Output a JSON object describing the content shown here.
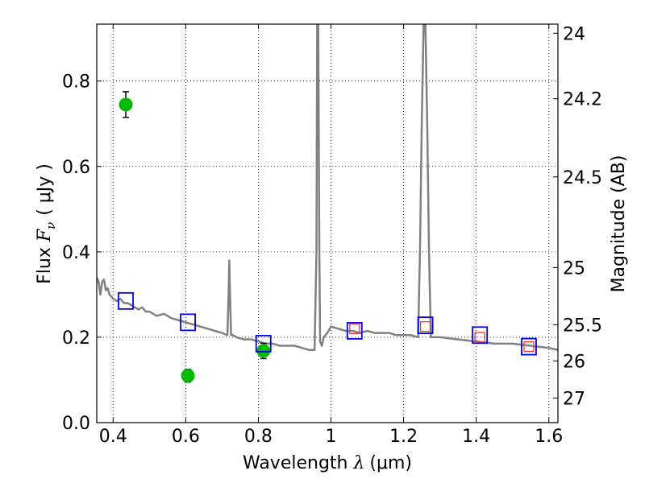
{
  "chart_data": {
    "type": "scatter",
    "xlabel": "Wavelength  λ (μm)",
    "xlabel_parts": {
      "prefix": "Wavelength  ",
      "symbol": "λ",
      "unit": "(μm)"
    },
    "ylabel": "Flux  Fν ( μJy )",
    "ylabel_parts": {
      "prefix": "Flux  ",
      "symbol": "F",
      "sub": "ν",
      "unit": "( μJy )"
    },
    "y2label": "Magnitude (AB)",
    "xlim": [
      0.355,
      1.625
    ],
    "ylim": [
      0.0,
      0.9333
    ],
    "grid": true,
    "x_ticks": [
      {
        "value": 0.4,
        "label": "0.4"
      },
      {
        "value": 0.6,
        "label": "0.6"
      },
      {
        "value": 0.8,
        "label": "0.8"
      },
      {
        "value": 1.0,
        "label": "1"
      },
      {
        "value": 1.2,
        "label": "1.2"
      },
      {
        "value": 1.4,
        "label": "1.4"
      },
      {
        "value": 1.6,
        "label": "1.6"
      }
    ],
    "y_ticks": [
      {
        "value": 0.0,
        "label": "0.0"
      },
      {
        "value": 0.2,
        "label": "0.2"
      },
      {
        "value": 0.4,
        "label": "0.4"
      },
      {
        "value": 0.6,
        "label": "0.6"
      },
      {
        "value": 0.8,
        "label": "0.8"
      }
    ],
    "y2_ticks": [
      {
        "mag": 24,
        "label": "24"
      },
      {
        "mag": 24.2,
        "label": "24.2"
      },
      {
        "mag": 24.5,
        "label": "24.5"
      },
      {
        "mag": 25,
        "label": "25"
      },
      {
        "mag": 25.5,
        "label": "25.5"
      },
      {
        "mag": 26,
        "label": "26"
      },
      {
        "mag": 27,
        "label": "27"
      }
    ],
    "series": [
      {
        "name": "model-spectrum",
        "kind": "line",
        "color": "#808080",
        "x": [
          0.355,
          0.36,
          0.365,
          0.37,
          0.375,
          0.38,
          0.385,
          0.39,
          0.4,
          0.41,
          0.42,
          0.43,
          0.44,
          0.45,
          0.46,
          0.47,
          0.48,
          0.49,
          0.5,
          0.52,
          0.54,
          0.56,
          0.58,
          0.6,
          0.62,
          0.64,
          0.66,
          0.68,
          0.7,
          0.715,
          0.718,
          0.72,
          0.722,
          0.725,
          0.73,
          0.74,
          0.76,
          0.78,
          0.8,
          0.82,
          0.84,
          0.86,
          0.88,
          0.9,
          0.92,
          0.94,
          0.955,
          0.96,
          0.962,
          0.965,
          0.968,
          0.97,
          0.975,
          0.98,
          0.99,
          1.0,
          1.02,
          1.04,
          1.06,
          1.08,
          1.1,
          1.12,
          1.14,
          1.16,
          1.18,
          1.2,
          1.22,
          1.24,
          1.245,
          1.25,
          1.255,
          1.26,
          1.265,
          1.27,
          1.275,
          1.28,
          1.3,
          1.35,
          1.4,
          1.45,
          1.5,
          1.55,
          1.6,
          1.625
        ],
        "y": [
          0.34,
          0.33,
          0.3,
          0.33,
          0.335,
          0.31,
          0.315,
          0.3,
          0.29,
          0.285,
          0.29,
          0.28,
          0.28,
          0.275,
          0.27,
          0.265,
          0.27,
          0.26,
          0.26,
          0.25,
          0.255,
          0.245,
          0.24,
          0.235,
          0.23,
          0.225,
          0.22,
          0.215,
          0.21,
          0.205,
          0.3,
          0.38,
          0.3,
          0.205,
          0.205,
          0.2,
          0.195,
          0.195,
          0.19,
          0.185,
          0.185,
          0.18,
          0.18,
          0.18,
          0.175,
          0.17,
          0.17,
          0.4,
          0.935,
          0.935,
          0.4,
          0.19,
          0.18,
          0.2,
          0.21,
          0.225,
          0.22,
          0.215,
          0.215,
          0.21,
          0.215,
          0.21,
          0.21,
          0.21,
          0.205,
          0.205,
          0.205,
          0.2,
          0.4,
          0.7,
          0.935,
          0.935,
          0.7,
          0.4,
          0.2,
          0.2,
          0.2,
          0.195,
          0.19,
          0.185,
          0.185,
          0.18,
          0.175,
          0.17
        ]
      },
      {
        "name": "observed-photometry",
        "kind": "points-with-errors",
        "color": "#00bb00",
        "x": [
          0.435,
          0.606,
          0.814
        ],
        "y": [
          0.745,
          0.11,
          0.168
        ],
        "yerr": [
          0.03,
          0.015,
          0.018
        ]
      },
      {
        "name": "model-photometry",
        "kind": "open-squares",
        "color": "#0000ff",
        "x": [
          0.435,
          0.606,
          0.814,
          1.065,
          1.26,
          1.41,
          1.545
        ],
        "y": [
          0.285,
          0.235,
          0.185,
          0.215,
          0.228,
          0.205,
          0.178
        ]
      },
      {
        "name": "observed-photometry-ir",
        "kind": "open-squares-small",
        "color": "#ff3333",
        "x": [
          1.065,
          1.26,
          1.41,
          1.545
        ],
        "y": [
          0.22,
          0.225,
          0.2,
          0.178
        ]
      }
    ]
  }
}
